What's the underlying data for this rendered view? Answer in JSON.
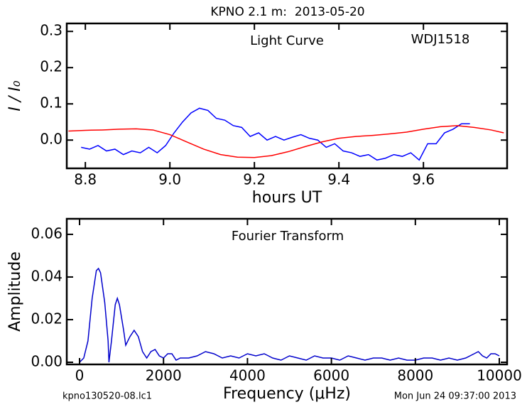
{
  "figure_title": "KPNO 2.1 m:  2013-05-20",
  "footer_left": "kpno130520-08.lc1",
  "footer_right": "Mon Jun 24 09:37:00 2013",
  "chart_data": [
    {
      "type": "line",
      "title": "Light Curve",
      "annotation": "WDJ1518",
      "x_label": "hours UT",
      "y_label": "I / I₀",
      "xlim": [
        8.756,
        9.798
      ],
      "ylim": [
        -0.078,
        0.322
      ],
      "xticks": [
        8.8,
        {
          "value": 9,
          "label": "9.0"
        },
        9.2,
        9.4,
        9.6
      ],
      "yticks": [
        {
          "value": 0,
          "label": "0.0"
        },
        0.1,
        0.2,
        0.3
      ],
      "series": [
        {
          "color": "#0000ff",
          "x": [
            8.79,
            8.81,
            8.83,
            8.85,
            8.87,
            8.89,
            8.91,
            8.93,
            8.95,
            8.97,
            8.99,
            9.01,
            9.03,
            9.05,
            9.07,
            9.09,
            9.11,
            9.13,
            9.15,
            9.17,
            9.19,
            9.21,
            9.23,
            9.25,
            9.27,
            9.29,
            9.31,
            9.33,
            9.35,
            9.37,
            9.39,
            9.41,
            9.43,
            9.45,
            9.47,
            9.49,
            9.51,
            9.53,
            9.55,
            9.57,
            9.59,
            9.61,
            9.63,
            9.65,
            9.67,
            9.69,
            9.71
          ],
          "values": [
            -0.02,
            -0.025,
            -0.015,
            -0.03,
            -0.025,
            -0.04,
            -0.03,
            -0.035,
            -0.02,
            -0.035,
            -0.015,
            0.02,
            0.05,
            0.075,
            0.088,
            0.082,
            0.06,
            0.055,
            0.04,
            0.035,
            0.01,
            0.02,
            0.0,
            0.01,
            0.0,
            0.008,
            0.015,
            0.005,
            0.0,
            -0.02,
            -0.01,
            -0.03,
            -0.035,
            -0.045,
            -0.04,
            -0.055,
            -0.05,
            -0.04,
            -0.045,
            -0.035,
            -0.055,
            -0.01,
            -0.01,
            0.02,
            0.03,
            0.045,
            0.045
          ]
        },
        {
          "color": "#ff0000",
          "x": [
            8.76,
            8.8,
            8.84,
            8.88,
            8.92,
            8.96,
            9.0,
            9.04,
            9.08,
            9.12,
            9.16,
            9.2,
            9.24,
            9.28,
            9.32,
            9.36,
            9.4,
            9.44,
            9.48,
            9.52,
            9.56,
            9.6,
            9.64,
            9.68,
            9.72,
            9.76,
            9.79
          ],
          "values": [
            0.025,
            0.027,
            0.028,
            0.03,
            0.031,
            0.028,
            0.015,
            -0.005,
            -0.025,
            -0.04,
            -0.047,
            -0.048,
            -0.043,
            -0.032,
            -0.018,
            -0.005,
            0.005,
            0.01,
            0.013,
            0.017,
            0.022,
            0.03,
            0.037,
            0.04,
            0.035,
            0.028,
            0.02
          ]
        }
      ]
    },
    {
      "type": "line",
      "title": "Fourier Transform",
      "x_label": "Frequency (μHz)",
      "y_label": "Amplitude",
      "xlim": [
        -305,
        10186
      ],
      "ylim": [
        -0.001,
        0.0673
      ],
      "xticks": [
        0,
        2000,
        4000,
        6000,
        8000,
        10000
      ],
      "yticks": [
        {
          "value": 0,
          "label": "0.00"
        },
        0.02,
        0.04,
        0.06
      ],
      "series": [
        {
          "color": "#0000cc",
          "x": [
            0,
            100,
            200,
            300,
            400,
            450,
            500,
            600,
            680,
            700,
            760,
            850,
            900,
            950,
            1050,
            1100,
            1200,
            1300,
            1400,
            1500,
            1600,
            1700,
            1800,
            1900,
            2000,
            2100,
            2200,
            2300,
            2400,
            2600,
            2800,
            3000,
            3200,
            3400,
            3600,
            3800,
            4000,
            4200,
            4400,
            4600,
            4800,
            5000,
            5200,
            5400,
            5600,
            5800,
            6000,
            6200,
            6400,
            6600,
            6800,
            7000,
            7200,
            7400,
            7600,
            7800,
            8000,
            8200,
            8400,
            8600,
            8800,
            9000,
            9200,
            9400,
            9500,
            9600,
            9700,
            9800,
            9900,
            10000
          ],
          "values": [
            0.0,
            0.002,
            0.01,
            0.03,
            0.043,
            0.044,
            0.042,
            0.028,
            0.01,
            0.0,
            0.01,
            0.027,
            0.03,
            0.027,
            0.015,
            0.008,
            0.012,
            0.015,
            0.012,
            0.005,
            0.002,
            0.005,
            0.006,
            0.003,
            0.002,
            0.004,
            0.004,
            0.001,
            0.002,
            0.002,
            0.003,
            0.005,
            0.004,
            0.002,
            0.003,
            0.002,
            0.004,
            0.003,
            0.004,
            0.002,
            0.001,
            0.003,
            0.002,
            0.001,
            0.003,
            0.002,
            0.002,
            0.001,
            0.003,
            0.002,
            0.001,
            0.002,
            0.002,
            0.001,
            0.002,
            0.001,
            0.001,
            0.002,
            0.002,
            0.001,
            0.002,
            0.001,
            0.002,
            0.004,
            0.005,
            0.003,
            0.002,
            0.004,
            0.004,
            0.003
          ]
        }
      ]
    }
  ]
}
